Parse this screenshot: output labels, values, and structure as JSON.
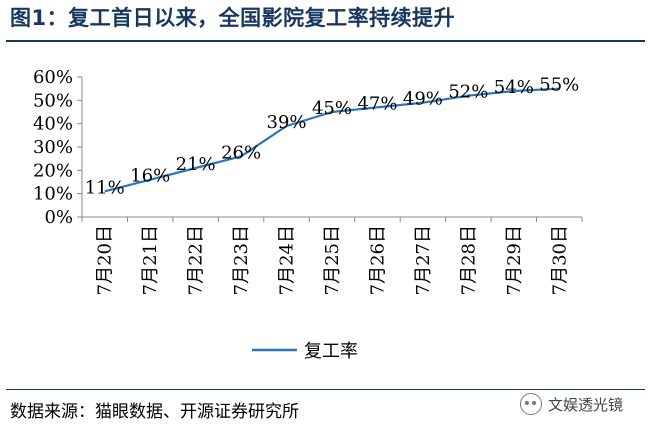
{
  "title": "图1：复工首日以来，全国影院复工率持续提升",
  "source": "数据来源：猫眼数据、开源证券研究所",
  "watermark": "文娱透光镜",
  "chart_data": {
    "type": "line",
    "categories": [
      "7月20日",
      "7月21日",
      "7月22日",
      "7月23日",
      "7月24日",
      "7月25日",
      "7月26日",
      "7月27日",
      "7月28日",
      "7月29日",
      "7月30日"
    ],
    "series": [
      {
        "name": "复工率",
        "values": [
          11,
          16,
          21,
          26,
          39,
          45,
          47,
          49,
          52,
          54,
          55
        ],
        "labels": [
          "11%",
          "16%",
          "21%",
          "26%",
          "39%",
          "45%",
          "47%",
          "49%",
          "52%",
          "54%",
          "55%"
        ],
        "color": "#2e75b6"
      }
    ],
    "yticks": [
      "0%",
      "10%",
      "20%",
      "30%",
      "40%",
      "50%",
      "60%"
    ],
    "ylim": [
      0,
      60
    ],
    "legend_position": "bottom",
    "grid": false
  }
}
